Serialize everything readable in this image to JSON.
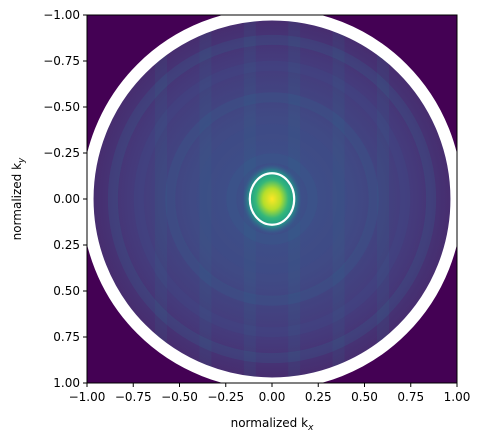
{
  "chart_data": {
    "type": "heatmap",
    "title": "",
    "xlabel": "normalized k",
    "xlabel_sub": "x",
    "ylabel": "normalized k",
    "ylabel_sub": "y",
    "xlim": [
      -1.0,
      1.0
    ],
    "ylim": [
      1.0,
      -1.0
    ],
    "y_inverted": true,
    "x_ticks": [
      -1.0,
      -0.75,
      -0.5,
      -0.25,
      0.0,
      0.25,
      0.5,
      0.75,
      1.0
    ],
    "x_tick_labels": [
      "−1.00",
      "−0.75",
      "−0.50",
      "−0.25",
      "0.00",
      "0.25",
      "0.50",
      "0.75",
      "1.00"
    ],
    "y_ticks": [
      -1.0,
      -0.75,
      -0.5,
      -0.25,
      0.0,
      0.25,
      0.5,
      0.75,
      1.0
    ],
    "y_tick_labels": [
      "−1.00",
      "−0.75",
      "−0.50",
      "−0.25",
      "0.00",
      "0.25",
      "0.50",
      "0.75",
      "1.00"
    ],
    "colormap": "viridis",
    "background_color": "#440154",
    "grid": false,
    "legend": "none",
    "overlays": [
      {
        "kind": "circle",
        "center": [
          0.0,
          0.0
        ],
        "radius": 0.97,
        "color": "#ffffff",
        "description": "aperture boundary ring"
      },
      {
        "kind": "ellipse",
        "center": [
          0.0,
          0.0
        ],
        "rx": 0.12,
        "ry": 0.14,
        "color": "#ffffff",
        "description": "central peak contour"
      }
    ],
    "intensity_features": {
      "peak_center": [
        0.0,
        0.0
      ],
      "peak_value": 1.0,
      "outer_disk_radius": 0.97
    }
  }
}
